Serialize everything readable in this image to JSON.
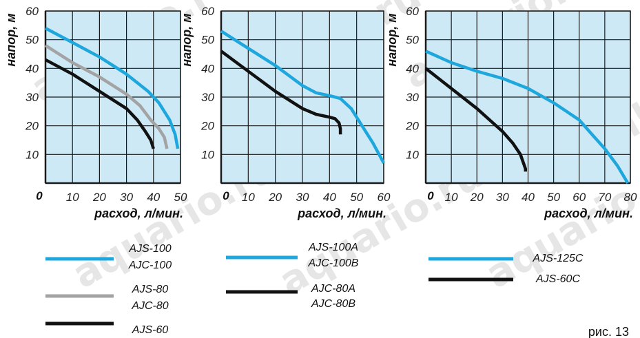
{
  "figure_label": "рис. 13",
  "watermark": "aquario.ru",
  "colors": {
    "plot_bg": "#cde9f6",
    "grid": "#1a1a1a",
    "blue": "#1ea7dd",
    "gray": "#a3a3a3",
    "black": "#111111"
  },
  "chart_data": [
    {
      "type": "line",
      "ylabel": "напор, м",
      "xlabel": "расход, л/мин.",
      "xlim": [
        0,
        50
      ],
      "ylim": [
        0,
        60
      ],
      "xticks": [
        10,
        20,
        30,
        40,
        50
      ],
      "yticks": [
        10,
        20,
        30,
        40,
        50,
        60
      ],
      "zero_label": "0",
      "grid": true,
      "series": [
        {
          "name": "AJS-100 / AJC-100",
          "color": "#1ea7dd",
          "points": [
            [
              0,
              54
            ],
            [
              10,
              49
            ],
            [
              20,
              44
            ],
            [
              30,
              38
            ],
            [
              38,
              32
            ],
            [
              42,
              28
            ],
            [
              46,
              22
            ],
            [
              48,
              17
            ],
            [
              49,
              12
            ]
          ]
        },
        {
          "name": "AJS-80 / AJC-80",
          "color": "#a3a3a3",
          "points": [
            [
              0,
              48
            ],
            [
              10,
              42
            ],
            [
              20,
              37
            ],
            [
              30,
              31
            ],
            [
              35,
              27
            ],
            [
              39,
              22
            ],
            [
              42,
              19
            ],
            [
              44,
              16
            ],
            [
              45,
              12
            ]
          ]
        },
        {
          "name": "AJS-60",
          "color": "#111111",
          "points": [
            [
              0,
              43
            ],
            [
              10,
              38
            ],
            [
              20,
              32
            ],
            [
              30,
              26
            ],
            [
              34,
              22
            ],
            [
              37,
              18
            ],
            [
              39,
              15
            ],
            [
              40,
              12
            ]
          ]
        }
      ]
    },
    {
      "type": "line",
      "ylabel": "напор, м",
      "xlabel": "расход, л/мин.",
      "xlim": [
        0,
        60
      ],
      "ylim": [
        0,
        60
      ],
      "xticks": [
        10,
        20,
        30,
        40,
        50,
        60
      ],
      "yticks": [
        10,
        20,
        30,
        40,
        50,
        60
      ],
      "zero_label": "0",
      "grid": true,
      "series": [
        {
          "name": "AJS-100A / AJC-100B",
          "color": "#1ea7dd",
          "points": [
            [
              0,
              53
            ],
            [
              10,
              47
            ],
            [
              20,
              41
            ],
            [
              30,
              34
            ],
            [
              35,
              31.5
            ],
            [
              40,
              30.5
            ],
            [
              44,
              29.5
            ],
            [
              48,
              26
            ],
            [
              52,
              20
            ],
            [
              56,
              14
            ],
            [
              60,
              7
            ]
          ]
        },
        {
          "name": "AJC-80A / AJC-80B",
          "color": "#111111",
          "points": [
            [
              0,
              46
            ],
            [
              10,
              39
            ],
            [
              20,
              32
            ],
            [
              30,
              26
            ],
            [
              35,
              24
            ],
            [
              40,
              23
            ],
            [
              42,
              22.5
            ],
            [
              43.5,
              21
            ],
            [
              44,
              19
            ],
            [
              44,
              17
            ]
          ]
        }
      ]
    },
    {
      "type": "line",
      "ylabel": "напор, м",
      "xlabel": "расход, л/мин.",
      "xlim": [
        0,
        80
      ],
      "ylim": [
        0,
        60
      ],
      "xticks": [
        10,
        20,
        30,
        40,
        50,
        60,
        70,
        80
      ],
      "yticks": [
        10,
        20,
        30,
        40,
        50,
        60
      ],
      "zero_label": "0",
      "grid": true,
      "series": [
        {
          "name": "AJS-125C",
          "color": "#1ea7dd",
          "points": [
            [
              0,
              46
            ],
            [
              10,
              42
            ],
            [
              20,
              39
            ],
            [
              30,
              36.5
            ],
            [
              40,
              33
            ],
            [
              50,
              28
            ],
            [
              60,
              22
            ],
            [
              65,
              17
            ],
            [
              70,
              12
            ],
            [
              75,
              6
            ],
            [
              79,
              0
            ]
          ]
        },
        {
          "name": "AJS-60C",
          "color": "#111111",
          "points": [
            [
              0,
              40
            ],
            [
              10,
              33
            ],
            [
              20,
              26
            ],
            [
              30,
              18
            ],
            [
              34,
              14
            ],
            [
              37,
              10
            ],
            [
              39,
              5
            ],
            [
              39,
              4
            ]
          ]
        }
      ]
    }
  ],
  "legends": [
    {
      "items": [
        {
          "color": "#1ea7dd",
          "lines": [
            "AJS-100",
            "AJC-100"
          ]
        },
        {
          "color": "#a3a3a3",
          "lines": [
            "AJS-80",
            "AJC-80"
          ]
        },
        {
          "color": "#111111",
          "lines": [
            "AJS-60"
          ]
        }
      ]
    },
    {
      "items": [
        {
          "color": "#1ea7dd",
          "lines": [
            "AJS-100A",
            "AJC-100B"
          ]
        },
        {
          "color": "#111111",
          "lines": [
            "AJC-80A",
            "AJC-80B"
          ]
        }
      ]
    },
    {
      "items": [
        {
          "color": "#1ea7dd",
          "lines": [
            "AJS-125C"
          ]
        },
        {
          "color": "#111111",
          "lines": [
            "AJS-60C"
          ]
        }
      ]
    }
  ]
}
